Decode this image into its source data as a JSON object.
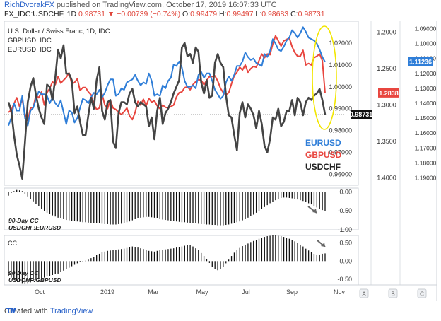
{
  "header": {
    "author": "RichDvorakFX",
    "published": "published on TradingView.com, October 17, 2019 16:07:33 UTC",
    "symbol": "FX_IDC:USDCHF, 1D",
    "change": "0.98731 ▼ −0.00739 (−0.74%)",
    "o_label": "O:",
    "o_value": "0.99479",
    "h_label": "H:",
    "h_value": "0.99497",
    "l_label": "L:",
    "l_value": "0.98683",
    "c_label": "C:",
    "c_value": "0.98731"
  },
  "footer": {
    "text": "Created with",
    "brand": "TradingView"
  },
  "colors": {
    "eurusd": "#2f7ed8",
    "gbpusd": "#e8463f",
    "usdchf": "#444444",
    "highlight": "#f2e600",
    "last_tag": "#111111"
  },
  "chart_data": [
    {
      "type": "line",
      "title": "U.S. Dollar / Swiss Franc, 1D, IDC",
      "overlay_titles": [
        "GBPUSD, IDC",
        "EURUSD, IDC"
      ],
      "x_ticks": [
        "Oct",
        "2019",
        "Mar",
        "May",
        "Jul",
        "Sep",
        "Nov"
      ],
      "axes": {
        "usdchf": {
          "ticks": [
            "1.02000",
            "1.01000",
            "1.00000",
            "0.99000",
            "0.98000",
            "0.97000",
            "0.96000"
          ],
          "ylim": [
            0.955,
            1.03
          ]
        },
        "gbpusd": {
          "ticks": [
            "1.2000",
            "1.2500",
            "1.3000",
            "1.3500",
            "1.4000"
          ],
          "ylim": [
            1.185,
            1.41
          ]
        },
        "eurusd": {
          "ticks": [
            "1.09000",
            "1.10000",
            "1.11000",
            "1.12000",
            "1.13000",
            "1.14000",
            "1.15000",
            "1.16000",
            "1.17000",
            "1.18000",
            "1.19000"
          ],
          "ylim": [
            1.085,
            1.195
          ]
        }
      },
      "last_values": {
        "eurusd": "1.11236",
        "gbpusd": "1.2838",
        "usdchf": "0.98731"
      },
      "legend": [
        "EURUSD",
        "GBPUSD",
        "USDCHF"
      ],
      "series": [
        {
          "name": "USDCHF",
          "values": [
            0.993,
            0.989,
            0.978,
            0.969,
            0.964,
            0.958,
            0.975,
            0.993,
            1.0,
            1.004,
            0.996,
            0.99,
            0.986,
            0.983,
            1.001,
            1.0,
            0.994,
            1.004,
            1.017,
            1.013,
            1.019,
            1.006,
            1.006,
            1.003,
            0.988,
            0.991,
            0.984,
            0.978,
            0.978,
            0.987,
            0.995,
            0.99,
            1.003,
            1.009,
            0.989,
            0.985,
            0.993,
            0.994,
            0.975,
            0.972,
            0.988,
            0.993,
            0.993,
            0.992,
            0.997,
            0.999,
            0.993,
            0.991,
            0.993,
            0.992,
            0.991,
            0.982,
            0.986,
            0.976,
            0.989,
            0.995,
            0.983,
            0.988,
            0.99,
            0.993,
            0.997,
            1.0,
            1.003,
            1.018,
            1.02,
            1.014,
            1.015,
            1.011,
            1.018,
            1.016,
            1.002,
            0.997,
            1.003,
            0.995,
            0.996,
            1.011,
            1.015,
            1.011,
            1.009,
            0.996,
            0.987,
            0.986,
            0.978,
            0.971,
            0.988,
            0.993,
            0.986,
            0.992,
            0.99,
            0.987,
            0.981,
            0.989,
            0.983,
            0.973,
            0.97,
            0.976,
            0.986,
            0.985,
            0.99,
            0.982,
            0.984,
            0.989,
            0.989,
            0.994,
            0.987,
            0.995,
            0.993,
            0.987,
            0.993,
            0.995,
            0.994,
            0.996,
            0.997,
            0.999,
            0.994,
            0.9873
          ]
        },
        {
          "name": "GBPUSD",
          "values": [
            1.31,
            1.307,
            1.298,
            1.29,
            1.302,
            1.292,
            1.313,
            1.321,
            1.304,
            1.303,
            1.286,
            1.29,
            1.282,
            1.3,
            1.283,
            1.277,
            1.268,
            1.272,
            1.261,
            1.27,
            1.266,
            1.262,
            1.256,
            1.271,
            1.269,
            1.264,
            1.28,
            1.276,
            1.276,
            1.282,
            1.286,
            1.299,
            1.306,
            1.304,
            1.285,
            1.3,
            1.305,
            1.293,
            1.304,
            1.306,
            1.31,
            1.313,
            1.309,
            1.304,
            1.315,
            1.32,
            1.31,
            1.295,
            1.3,
            1.292,
            1.301,
            1.291,
            1.296,
            1.294,
            1.301,
            1.305,
            1.3,
            1.303,
            1.304,
            1.302,
            1.3,
            1.289,
            1.283,
            1.282,
            1.276,
            1.275,
            1.279,
            1.272,
            1.268,
            1.265,
            1.266,
            1.272,
            1.266,
            1.261,
            1.261,
            1.26,
            1.267,
            1.277,
            1.283,
            1.286,
            1.283,
            1.271,
            1.26,
            1.255,
            1.248,
            1.252,
            1.245,
            1.255,
            1.25,
            1.247,
            1.248,
            1.239,
            1.23,
            1.235,
            1.23,
            1.231,
            1.216,
            1.205,
            1.212,
            1.219,
            1.212,
            1.21,
            1.208,
            1.22,
            1.228,
            1.233,
            1.233,
            1.225,
            1.245,
            1.243,
            1.245,
            1.235,
            1.233,
            1.23,
            1.239,
            1.2838
          ]
        },
        {
          "name": "EURUSD",
          "values": [
            1.155,
            1.15,
            1.14,
            1.145,
            1.145,
            1.135,
            1.15,
            1.155,
            1.145,
            1.143,
            1.137,
            1.132,
            1.134,
            1.134,
            1.135,
            1.14,
            1.136,
            1.14,
            1.142,
            1.138,
            1.146,
            1.154,
            1.145,
            1.146,
            1.153,
            1.15,
            1.143,
            1.137,
            1.138,
            1.14,
            1.136,
            1.133,
            1.134,
            1.131,
            1.136,
            1.133,
            1.128,
            1.124,
            1.124,
            1.135,
            1.134,
            1.13,
            1.131,
            1.126,
            1.125,
            1.124,
            1.121,
            1.125,
            1.128,
            1.126,
            1.127,
            1.12,
            1.125,
            1.135,
            1.134,
            1.135,
            1.128,
            1.13,
            1.125,
            1.123,
            1.114,
            1.115,
            1.112,
            1.116,
            1.125,
            1.129,
            1.129,
            1.128,
            1.13,
            1.121,
            1.119,
            1.123,
            1.12,
            1.12,
            1.125,
            1.131,
            1.134,
            1.137,
            1.135,
            1.126,
            1.122,
            1.125,
            1.121,
            1.115,
            1.115,
            1.112,
            1.106,
            1.109,
            1.111,
            1.11,
            1.113,
            1.114,
            1.115,
            1.107,
            1.109,
            1.105,
            1.097,
            1.1,
            1.104,
            1.105,
            1.102,
            1.098,
            1.096,
            1.091,
            1.093,
            1.096,
            1.093,
            1.089,
            1.092,
            1.096,
            1.097,
            1.098,
            1.1,
            1.104,
            1.109,
            1.11236
          ]
        }
      ]
    },
    {
      "type": "bar",
      "title": "90-Day CC",
      "subtitle": "USDCHF:EURUSD",
      "yticks": [
        "0.00",
        "-0.50",
        "-1.00"
      ],
      "ylim": [
        -1.0,
        0.1
      ],
      "values": [
        -0.1,
        -0.03,
        0.02,
        0.05,
        0.04,
        0.02,
        -0.05,
        -0.12,
        -0.18,
        -0.25,
        -0.32,
        -0.38,
        -0.44,
        -0.5,
        -0.55,
        -0.58,
        -0.62,
        -0.65,
        -0.68,
        -0.7,
        -0.72,
        -0.74,
        -0.75,
        -0.76,
        -0.77,
        -0.78,
        -0.79,
        -0.8,
        -0.8,
        -0.81,
        -0.82,
        -0.82,
        -0.83,
        -0.83,
        -0.84,
        -0.85,
        -0.85,
        -0.86,
        -0.86,
        -0.86,
        -0.85,
        -0.84,
        -0.82,
        -0.8,
        -0.78,
        -0.75,
        -0.72,
        -0.7,
        -0.68,
        -0.67,
        -0.66,
        -0.66,
        -0.67,
        -0.68,
        -0.7,
        -0.72,
        -0.73,
        -0.74,
        -0.75,
        -0.76,
        -0.77,
        -0.78,
        -0.79,
        -0.8,
        -0.8,
        -0.81,
        -0.82,
        -0.83,
        -0.83,
        -0.84,
        -0.85,
        -0.85,
        -0.86,
        -0.86,
        -0.87,
        -0.87,
        -0.88,
        -0.88,
        -0.88,
        -0.87,
        -0.86,
        -0.84,
        -0.82,
        -0.8,
        -0.78,
        -0.75,
        -0.72,
        -0.68,
        -0.64,
        -0.6,
        -0.55,
        -0.5,
        -0.45,
        -0.4,
        -0.35,
        -0.3,
        -0.26,
        -0.22,
        -0.18,
        -0.16,
        -0.15,
        -0.15,
        -0.16,
        -0.17,
        -0.18,
        -0.2,
        -0.22,
        -0.24,
        -0.27,
        -0.3,
        -0.33,
        -0.37,
        -0.41,
        -0.45,
        -0.48,
        -0.5
      ]
    },
    {
      "type": "bar",
      "title": "90-Day CC",
      "subtitle": "USDCHF:GBPUSD",
      "label": "CC",
      "yticks": [
        "0.50",
        "0.00",
        "-0.50"
      ],
      "ylim": [
        -0.65,
        0.7
      ],
      "values": [
        -0.4,
        -0.45,
        -0.5,
        -0.54,
        -0.57,
        -0.6,
        -0.62,
        -0.6,
        -0.58,
        -0.55,
        -0.52,
        -0.5,
        -0.47,
        -0.45,
        -0.42,
        -0.4,
        -0.38,
        -0.36,
        -0.34,
        -0.3,
        -0.26,
        -0.22,
        -0.18,
        -0.14,
        -0.1,
        -0.06,
        -0.03,
        -0.01,
        0.01,
        0.04,
        0.08,
        0.12,
        0.16,
        0.2,
        0.24,
        0.26,
        0.28,
        0.29,
        0.3,
        0.3,
        0.32,
        0.33,
        0.34,
        0.36,
        0.38,
        0.4,
        0.39,
        0.37,
        0.35,
        0.33,
        0.3,
        0.28,
        0.27,
        0.26,
        0.28,
        0.3,
        0.31,
        0.32,
        0.33,
        0.34,
        0.35,
        0.37,
        0.39,
        0.4,
        0.42,
        0.44,
        0.43,
        0.4,
        0.35,
        0.3,
        0.22,
        0.14,
        0.05,
        -0.05,
        -0.15,
        -0.22,
        -0.25,
        -0.22,
        -0.15,
        -0.06,
        0.04,
        0.14,
        0.23,
        0.3,
        0.36,
        0.41,
        0.45,
        0.48,
        0.52,
        0.55,
        0.58,
        0.61,
        0.64,
        0.66,
        0.68,
        0.69,
        0.7,
        0.7,
        0.69,
        0.68,
        0.66,
        0.64,
        0.61,
        0.58,
        0.54,
        0.5,
        0.45,
        0.4,
        0.34,
        0.29,
        0.24,
        0.2,
        0.18,
        0.18,
        0.2,
        0.21
      ]
    }
  ]
}
